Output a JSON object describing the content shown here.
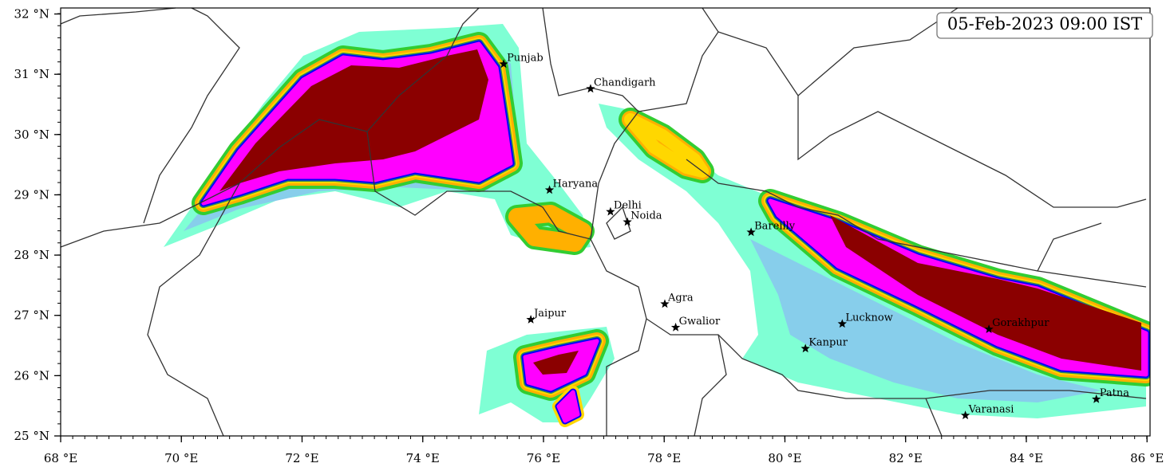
{
  "map": {
    "timestamp": "05-Feb-2023 09:00 IST",
    "xlim": [
      68,
      86.05
    ],
    "ylim": [
      25,
      32.1
    ],
    "xticks": [
      {
        "value": 68,
        "label": "68 °E"
      },
      {
        "value": 70,
        "label": "70 °E"
      },
      {
        "value": 72,
        "label": "72 °E"
      },
      {
        "value": 74,
        "label": "74 °E"
      },
      {
        "value": 76,
        "label": "76 °E"
      },
      {
        "value": 78,
        "label": "78 °E"
      },
      {
        "value": 80,
        "label": "80 °E"
      },
      {
        "value": 82,
        "label": "82 °E"
      },
      {
        "value": 84,
        "label": "84 °E"
      },
      {
        "value": 86,
        "label": "86 °E"
      }
    ],
    "yticks": [
      {
        "value": 25,
        "label": "25 °N"
      },
      {
        "value": 26,
        "label": "26 °N"
      },
      {
        "value": 27,
        "label": "27 °N"
      },
      {
        "value": 28,
        "label": "28 °N"
      },
      {
        "value": 29,
        "label": "29 °N"
      },
      {
        "value": 30,
        "label": "30 °N"
      },
      {
        "value": 31,
        "label": "31 °N"
      },
      {
        "value": 32,
        "label": "32 °N"
      }
    ],
    "cities": [
      {
        "name": "Punjab",
        "lon": 75.34,
        "lat": 31.17
      },
      {
        "name": "Chandigarh",
        "lon": 76.78,
        "lat": 30.76
      },
      {
        "name": "Haryana",
        "lon": 76.1,
        "lat": 29.08
      },
      {
        "name": "Delhi",
        "lon": 77.11,
        "lat": 28.72
      },
      {
        "name": "Noida",
        "lon": 77.39,
        "lat": 28.55
      },
      {
        "name": "Bareilly",
        "lon": 79.44,
        "lat": 28.38
      },
      {
        "name": "Agra",
        "lon": 78.01,
        "lat": 27.19
      },
      {
        "name": "Gwalior",
        "lon": 78.19,
        "lat": 26.8
      },
      {
        "name": "Jaipur",
        "lon": 75.79,
        "lat": 26.93
      },
      {
        "name": "Lucknow",
        "lon": 80.95,
        "lat": 26.86
      },
      {
        "name": "Kanpur",
        "lon": 80.34,
        "lat": 26.45
      },
      {
        "name": "Gorakhpur",
        "lon": 83.38,
        "lat": 26.77
      },
      {
        "name": "Varanasi",
        "lon": 82.99,
        "lat": 25.34
      },
      {
        "name": "Patna",
        "lon": 85.16,
        "lat": 25.61
      }
    ]
  }
}
